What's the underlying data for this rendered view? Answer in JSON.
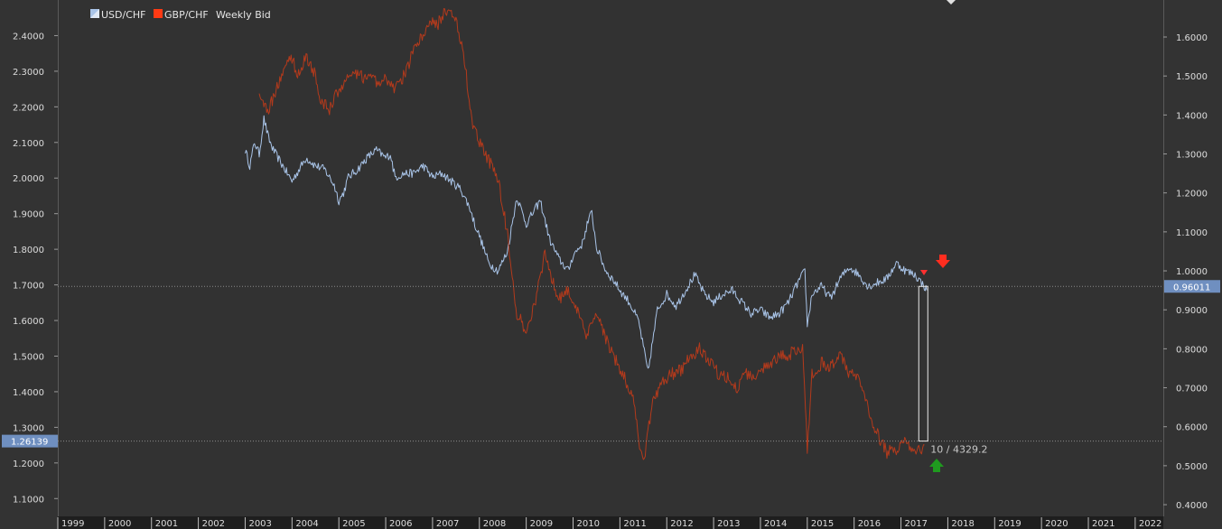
{
  "chart_data": {
    "type": "line",
    "title": "Weekly Bid",
    "x_ticks": [
      "1999",
      "2000",
      "2001",
      "2002",
      "2003",
      "2004",
      "2005",
      "2006",
      "2007",
      "2008",
      "2009",
      "2010",
      "2011",
      "2012",
      "2013",
      "2014",
      "2015",
      "2016",
      "2017",
      "2018",
      "2019",
      "2020",
      "2021",
      "2022"
    ],
    "x_range": [
      1999.0,
      2022.6
    ],
    "left_axis": {
      "range": [
        1.05,
        2.5
      ],
      "ticks": [
        "1.1000",
        "1.2000",
        "1.3000",
        "1.4000",
        "1.5000",
        "1.6000",
        "1.7000",
        "1.8000",
        "1.9000",
        "2.0000",
        "2.1000",
        "2.2000",
        "2.3000",
        "2.4000"
      ],
      "current_value_label": "1.26139"
    },
    "right_axis": {
      "range": [
        0.37,
        1.695
      ],
      "ticks": [
        "0.4000",
        "0.5000",
        "0.6000",
        "0.7000",
        "0.8000",
        "0.9000",
        "1.0000",
        "1.1000",
        "1.2000",
        "1.3000",
        "1.4000",
        "1.5000",
        "1.6000"
      ],
      "current_value_label": "0.96011"
    },
    "legend_position": "top-left",
    "series": [
      {
        "name": "USD/CHF",
        "axis": "right",
        "color": "#a9c4e8",
        "points": [
          [
            2003.0,
            1.31
          ],
          [
            2003.1,
            1.27
          ],
          [
            2003.2,
            1.33
          ],
          [
            2003.3,
            1.3
          ],
          [
            2003.4,
            1.39
          ],
          [
            2003.5,
            1.34
          ],
          [
            2003.6,
            1.31
          ],
          [
            2003.8,
            1.27
          ],
          [
            2004.0,
            1.23
          ],
          [
            2004.1,
            1.25
          ],
          [
            2004.3,
            1.29
          ],
          [
            2004.5,
            1.27
          ],
          [
            2004.7,
            1.26
          ],
          [
            2004.9,
            1.22
          ],
          [
            2005.0,
            1.18
          ],
          [
            2005.1,
            1.2
          ],
          [
            2005.2,
            1.24
          ],
          [
            2005.4,
            1.26
          ],
          [
            2005.6,
            1.29
          ],
          [
            2005.8,
            1.31
          ],
          [
            2006.0,
            1.29
          ],
          [
            2006.1,
            1.3
          ],
          [
            2006.2,
            1.24
          ],
          [
            2006.4,
            1.25
          ],
          [
            2006.6,
            1.25
          ],
          [
            2006.8,
            1.27
          ],
          [
            2007.0,
            1.24
          ],
          [
            2007.2,
            1.25
          ],
          [
            2007.4,
            1.23
          ],
          [
            2007.6,
            1.21
          ],
          [
            2007.8,
            1.16
          ],
          [
            2007.9,
            1.12
          ],
          [
            2008.0,
            1.09
          ],
          [
            2008.2,
            1.02
          ],
          [
            2008.4,
            1.0
          ],
          [
            2008.6,
            1.05
          ],
          [
            2008.8,
            1.19
          ],
          [
            2009.0,
            1.12
          ],
          [
            2009.2,
            1.16
          ],
          [
            2009.3,
            1.18
          ],
          [
            2009.5,
            1.08
          ],
          [
            2009.7,
            1.03
          ],
          [
            2009.9,
            1.0
          ],
          [
            2010.0,
            1.04
          ],
          [
            2010.2,
            1.07
          ],
          [
            2010.3,
            1.12
          ],
          [
            2010.4,
            1.15
          ],
          [
            2010.5,
            1.06
          ],
          [
            2010.7,
            1.0
          ],
          [
            2010.9,
            0.97
          ],
          [
            2011.0,
            0.95
          ],
          [
            2011.2,
            0.92
          ],
          [
            2011.4,
            0.87
          ],
          [
            2011.6,
            0.74
          ],
          [
            2011.8,
            0.9
          ],
          [
            2012.0,
            0.94
          ],
          [
            2012.2,
            0.91
          ],
          [
            2012.4,
            0.95
          ],
          [
            2012.6,
            0.99
          ],
          [
            2012.8,
            0.94
          ],
          [
            2013.0,
            0.92
          ],
          [
            2013.2,
            0.94
          ],
          [
            2013.4,
            0.95
          ],
          [
            2013.6,
            0.92
          ],
          [
            2013.8,
            0.89
          ],
          [
            2014.0,
            0.9
          ],
          [
            2014.2,
            0.88
          ],
          [
            2014.4,
            0.89
          ],
          [
            2014.6,
            0.92
          ],
          [
            2014.8,
            0.97
          ],
          [
            2014.95,
            1.0
          ],
          [
            2015.0,
            0.86
          ],
          [
            2015.1,
            0.94
          ],
          [
            2015.3,
            0.96
          ],
          [
            2015.5,
            0.93
          ],
          [
            2015.7,
            0.98
          ],
          [
            2015.9,
            1.01
          ],
          [
            2016.1,
            0.99
          ],
          [
            2016.3,
            0.96
          ],
          [
            2016.5,
            0.97
          ],
          [
            2016.7,
            0.98
          ],
          [
            2016.9,
            1.02
          ],
          [
            2017.1,
            1.0
          ],
          [
            2017.3,
            0.99
          ],
          [
            2017.5,
            0.96
          ],
          [
            2017.55,
            0.95
          ]
        ]
      },
      {
        "name": "GBP/CHF",
        "axis": "left",
        "color": "#b33a1c",
        "points": [
          [
            2003.3,
            2.24
          ],
          [
            2003.5,
            2.19
          ],
          [
            2003.7,
            2.26
          ],
          [
            2003.9,
            2.33
          ],
          [
            2004.0,
            2.34
          ],
          [
            2004.1,
            2.29
          ],
          [
            2004.3,
            2.34
          ],
          [
            2004.5,
            2.29
          ],
          [
            2004.6,
            2.22
          ],
          [
            2004.8,
            2.19
          ],
          [
            2005.0,
            2.25
          ],
          [
            2005.2,
            2.28
          ],
          [
            2005.4,
            2.29
          ],
          [
            2005.6,
            2.28
          ],
          [
            2005.8,
            2.27
          ],
          [
            2006.0,
            2.28
          ],
          [
            2006.2,
            2.25
          ],
          [
            2006.4,
            2.29
          ],
          [
            2006.6,
            2.36
          ],
          [
            2006.8,
            2.4
          ],
          [
            2007.0,
            2.45
          ],
          [
            2007.1,
            2.43
          ],
          [
            2007.3,
            2.47
          ],
          [
            2007.5,
            2.44
          ],
          [
            2007.7,
            2.32
          ],
          [
            2007.8,
            2.18
          ],
          [
            2008.0,
            2.1
          ],
          [
            2008.2,
            2.05
          ],
          [
            2008.4,
            2.0
          ],
          [
            2008.6,
            1.84
          ],
          [
            2008.8,
            1.62
          ],
          [
            2009.0,
            1.57
          ],
          [
            2009.2,
            1.66
          ],
          [
            2009.4,
            1.79
          ],
          [
            2009.5,
            1.74
          ],
          [
            2009.7,
            1.66
          ],
          [
            2009.9,
            1.69
          ],
          [
            2010.1,
            1.62
          ],
          [
            2010.3,
            1.55
          ],
          [
            2010.5,
            1.63
          ],
          [
            2010.7,
            1.55
          ],
          [
            2010.9,
            1.49
          ],
          [
            2011.1,
            1.44
          ],
          [
            2011.3,
            1.37
          ],
          [
            2011.4,
            1.26
          ],
          [
            2011.5,
            1.2
          ],
          [
            2011.7,
            1.37
          ],
          [
            2011.9,
            1.43
          ],
          [
            2012.1,
            1.45
          ],
          [
            2012.3,
            1.46
          ],
          [
            2012.5,
            1.5
          ],
          [
            2012.7,
            1.52
          ],
          [
            2012.9,
            1.49
          ],
          [
            2013.1,
            1.45
          ],
          [
            2013.3,
            1.44
          ],
          [
            2013.5,
            1.41
          ],
          [
            2013.7,
            1.45
          ],
          [
            2013.9,
            1.44
          ],
          [
            2014.1,
            1.47
          ],
          [
            2014.3,
            1.49
          ],
          [
            2014.5,
            1.5
          ],
          [
            2014.7,
            1.51
          ],
          [
            2014.9,
            1.52
          ],
          [
            2015.0,
            1.24
          ],
          [
            2015.1,
            1.45
          ],
          [
            2015.3,
            1.48
          ],
          [
            2015.5,
            1.47
          ],
          [
            2015.7,
            1.51
          ],
          [
            2015.9,
            1.45
          ],
          [
            2016.1,
            1.44
          ],
          [
            2016.3,
            1.35
          ],
          [
            2016.5,
            1.28
          ],
          [
            2016.7,
            1.23
          ],
          [
            2016.9,
            1.24
          ],
          [
            2017.1,
            1.26
          ],
          [
            2017.3,
            1.22
          ],
          [
            2017.5,
            1.25
          ]
        ]
      }
    ],
    "annotations": [
      {
        "type": "measure-box",
        "text": "10 / 4329.2"
      },
      {
        "type": "down-arrow",
        "color": "#ff2d1f"
      },
      {
        "type": "up-arrow",
        "color": "#1f9a1f"
      }
    ]
  }
}
